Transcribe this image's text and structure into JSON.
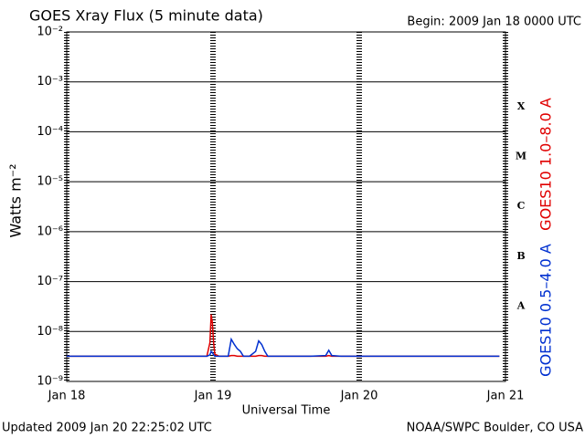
{
  "chart_data": {
    "type": "line",
    "title": "GOES Xray Flux (5 minute data)",
    "subtitle": "Begin:  2009 Jan 18 0000 UTC",
    "x_label": "Universal Time",
    "y_label": "Watts m⁻²",
    "footer_left": "Updated 2009 Jan 20 22:25:02 UTC",
    "footer_right": "NOAA/SWPC Boulder, CO USA",
    "log_y": true,
    "grid": true,
    "x": [
      0,
      10,
      20,
      23,
      23.5,
      23.7,
      23.9,
      24.1,
      24.3,
      25,
      26.5,
      27,
      27.5,
      28,
      28.5,
      29,
      30,
      31,
      31.5,
      32,
      32.5,
      33,
      35,
      37,
      40,
      42.5,
      43,
      43.5,
      45,
      50,
      55,
      60,
      65,
      70,
      71
    ],
    "series": [
      {
        "name": "GOES10 1.0–8.0 A",
        "color": "#e00000",
        "values": [
          3.2e-09,
          3.2e-09,
          3.2e-09,
          3.2e-09,
          6e-09,
          2.2e-08,
          1.5e-08,
          6e-09,
          3.5e-09,
          3.2e-09,
          3.2e-09,
          3.3e-09,
          3.3e-09,
          3.2e-09,
          3.2e-09,
          3.2e-09,
          3.2e-09,
          3.2e-09,
          3.3e-09,
          3.3e-09,
          3.2e-09,
          3.2e-09,
          3.2e-09,
          3.2e-09,
          3.2e-09,
          3.2e-09,
          3.3e-09,
          3.2e-09,
          3.2e-09,
          3.2e-09,
          3.2e-09,
          3.2e-09,
          3.2e-09,
          3.2e-09,
          3.2e-09
        ]
      },
      {
        "name": "GOES10 0.5–4.0 A",
        "color": "#0030d0",
        "values": [
          3.2e-09,
          3.2e-09,
          3.2e-09,
          3.2e-09,
          3.4e-09,
          4e-09,
          3.8e-09,
          3.4e-09,
          3.2e-09,
          3.2e-09,
          3.2e-09,
          7e-09,
          5.5e-09,
          4.5e-09,
          4e-09,
          3.2e-09,
          3.2e-09,
          4e-09,
          6.5e-09,
          5.5e-09,
          4e-09,
          3.2e-09,
          3.2e-09,
          3.2e-09,
          3.2e-09,
          3.3e-09,
          4.2e-09,
          3.3e-09,
          3.2e-09,
          3.2e-09,
          3.2e-09,
          3.2e-09,
          3.2e-09,
          3.2e-09,
          3.2e-09
        ]
      }
    ],
    "xlim": [
      0,
      72
    ],
    "xticks": [
      {
        "value": 0,
        "label": "Jan 18"
      },
      {
        "value": 24,
        "label": "Jan 19"
      },
      {
        "value": 48,
        "label": "Jan 20"
      },
      {
        "value": 72,
        "label": "Jan 21"
      }
    ],
    "ylim": [
      1e-09,
      0.01
    ],
    "yticks": [
      {
        "value": 1e-09,
        "label": "10⁻⁹"
      },
      {
        "value": 1e-08,
        "label": "10⁻⁸"
      },
      {
        "value": 1e-07,
        "label": "10⁻⁷"
      },
      {
        "value": 1e-06,
        "label": "10⁻⁶"
      },
      {
        "value": 1e-05,
        "label": "10⁻⁵"
      },
      {
        "value": 0.0001,
        "label": "10⁻⁴"
      },
      {
        "value": 0.001,
        "label": "10⁻³"
      },
      {
        "value": 0.01,
        "label": "10⁻²"
      }
    ],
    "class_labels": [
      {
        "value": 3.2e-08,
        "label": "A"
      },
      {
        "value": 3.2e-07,
        "label": "B"
      },
      {
        "value": 3.2e-06,
        "label": "C"
      },
      {
        "value": 3.2e-05,
        "label": "M"
      },
      {
        "value": 0.00032,
        "label": "X"
      }
    ]
  }
}
